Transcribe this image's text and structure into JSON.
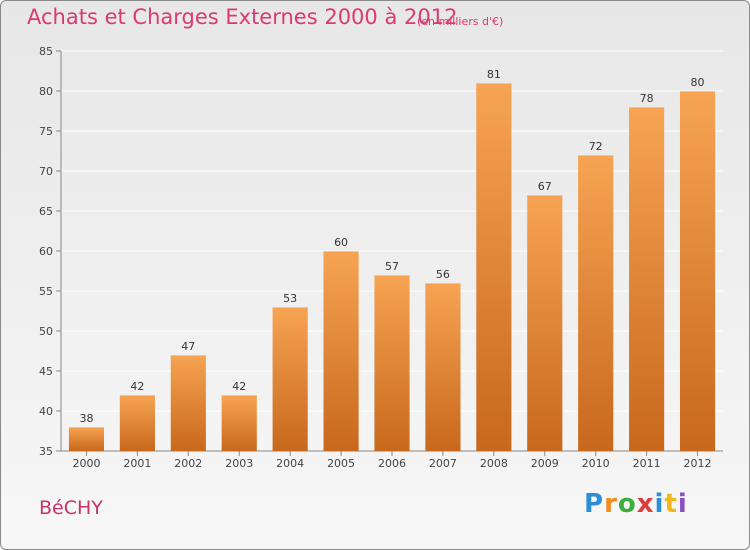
{
  "header": {
    "title": "Achats et Charges Externes 2000 à 2012",
    "unit": "(en milliers d'€)"
  },
  "footer": {
    "commune": "BéCHY",
    "logo": [
      "P",
      "r",
      "o",
      "x",
      "i",
      "t",
      "i"
    ]
  },
  "colors": {
    "title": "#dc3a6e",
    "bar_top": "#f6a453",
    "bar_bottom": "#c8681c",
    "grid": "#ffffff"
  },
  "chart_data": {
    "type": "bar",
    "title": "Achats et Charges Externes 2000 à 2012",
    "subtitle": "(en milliers d'€)",
    "categories": [
      "2000",
      "2001",
      "2002",
      "2003",
      "2004",
      "2005",
      "2006",
      "2007",
      "2008",
      "2009",
      "2010",
      "2011",
      "2012"
    ],
    "values": [
      38,
      42,
      47,
      42,
      53,
      60,
      57,
      56,
      81,
      67,
      72,
      78,
      80
    ],
    "ylim": [
      35,
      85
    ],
    "yticks": [
      35,
      40,
      45,
      50,
      55,
      60,
      65,
      70,
      75,
      80,
      85
    ],
    "grid": true,
    "data_labels": true
  }
}
